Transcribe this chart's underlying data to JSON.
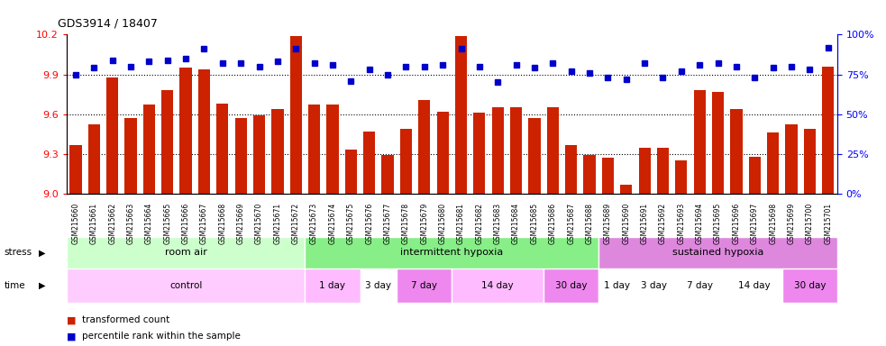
{
  "title": "GDS3914 / 18407",
  "samples": [
    "GSM215660",
    "GSM215661",
    "GSM215662",
    "GSM215663",
    "GSM215664",
    "GSM215665",
    "GSM215666",
    "GSM215667",
    "GSM215668",
    "GSM215669",
    "GSM215670",
    "GSM215671",
    "GSM215672",
    "GSM215673",
    "GSM215674",
    "GSM215675",
    "GSM215676",
    "GSM215677",
    "GSM215678",
    "GSM215679",
    "GSM215680",
    "GSM215681",
    "GSM215682",
    "GSM215683",
    "GSM215684",
    "GSM215685",
    "GSM215686",
    "GSM215687",
    "GSM215688",
    "GSM215689",
    "GSM215690",
    "GSM215691",
    "GSM215692",
    "GSM215693",
    "GSM215694",
    "GSM215695",
    "GSM215696",
    "GSM215697",
    "GSM215698",
    "GSM215699",
    "GSM215700",
    "GSM215701"
  ],
  "bar_values": [
    9.37,
    9.52,
    9.88,
    9.57,
    9.67,
    9.78,
    9.95,
    9.94,
    9.68,
    9.57,
    9.59,
    9.64,
    10.19,
    9.67,
    9.67,
    9.33,
    9.47,
    9.29,
    9.49,
    9.71,
    9.62,
    10.19,
    9.61,
    9.65,
    9.65,
    9.57,
    9.65,
    9.37,
    9.29,
    9.27,
    9.07,
    9.35,
    9.35,
    9.25,
    9.78,
    9.77,
    9.64,
    9.28,
    9.46,
    9.52,
    9.49,
    9.96
  ],
  "percentile_values": [
    75,
    79,
    84,
    80,
    83,
    84,
    85,
    91,
    82,
    82,
    80,
    83,
    91,
    82,
    81,
    71,
    78,
    75,
    80,
    80,
    81,
    91,
    80,
    70,
    81,
    79,
    82,
    77,
    76,
    73,
    72,
    82,
    73,
    77,
    81,
    82,
    80,
    73,
    79,
    80,
    78,
    92
  ],
  "bar_color": "#cc2200",
  "percentile_color": "#0000cc",
  "ylim_left": [
    9.0,
    10.2
  ],
  "ylim_right": [
    0,
    100
  ],
  "yticks_left": [
    9.0,
    9.3,
    9.6,
    9.9,
    10.2
  ],
  "yticks_right": [
    0,
    25,
    50,
    75,
    100
  ],
  "stress_groups": [
    {
      "label": "room air",
      "start": 0,
      "end": 13,
      "color": "#ccffcc"
    },
    {
      "label": "intermittent hypoxia",
      "start": 13,
      "end": 29,
      "color": "#88ee88"
    },
    {
      "label": "sustained hypoxia",
      "start": 29,
      "end": 42,
      "color": "#dd88dd"
    }
  ],
  "time_groups": [
    {
      "label": "control",
      "start": 0,
      "end": 13,
      "color": "#ffccff"
    },
    {
      "label": "1 day",
      "start": 13,
      "end": 16,
      "color": "#ffbbff"
    },
    {
      "label": "3 day",
      "start": 16,
      "end": 18,
      "color": "#ffffff"
    },
    {
      "label": "7 day",
      "start": 18,
      "end": 21,
      "color": "#ee88ee"
    },
    {
      "label": "14 day",
      "start": 21,
      "end": 26,
      "color": "#ffbbff"
    },
    {
      "label": "30 day",
      "start": 26,
      "end": 29,
      "color": "#ee88ee"
    },
    {
      "label": "1 day",
      "start": 29,
      "end": 31,
      "color": "#ffffff"
    },
    {
      "label": "3 day",
      "start": 31,
      "end": 33,
      "color": "#ffffff"
    },
    {
      "label": "7 day",
      "start": 33,
      "end": 36,
      "color": "#ffffff"
    },
    {
      "label": "14 day",
      "start": 36,
      "end": 39,
      "color": "#ffffff"
    },
    {
      "label": "30 day",
      "start": 39,
      "end": 42,
      "color": "#ee88ee"
    }
  ],
  "legend_items": [
    {
      "label": "transformed count",
      "color": "#cc2200"
    },
    {
      "label": "percentile rank within the sample",
      "color": "#0000cc"
    }
  ]
}
